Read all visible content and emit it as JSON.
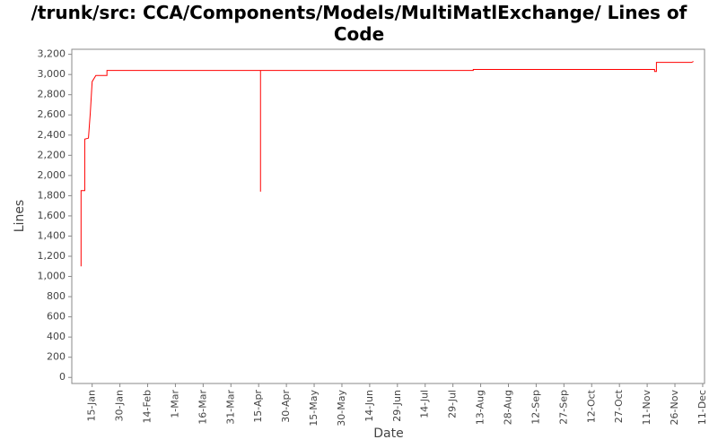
{
  "chart_data": {
    "type": "line",
    "title": "/trunk/src: CCA/Components/Models/MultiMatlExchange/ Lines of Code",
    "x_label": "Date",
    "y_label": "Lines",
    "x": [
      "9-Jan",
      "9-Jan",
      "11-Jan",
      "11-Jan",
      "13-Jan",
      "14-Jan",
      "15-Jan",
      "16-Jan",
      "17-Jan",
      "23-Jan",
      "23-Jan",
      "16-Apr",
      "16-Apr",
      "16-Apr",
      "9-Aug",
      "9-Aug",
      "15-Nov",
      "15-Nov",
      "16-Nov",
      "16-Nov",
      "5-Dec",
      "6-Dec"
    ],
    "series": [
      {
        "name": "Lines",
        "color": "#ff0000",
        "values": [
          1100,
          1850,
          1850,
          2360,
          2370,
          2620,
          2930,
          2960,
          2990,
          2990,
          3040,
          3040,
          1840,
          3040,
          3040,
          3050,
          3050,
          3030,
          3030,
          3120,
          3120,
          3130
        ]
      }
    ],
    "xlim": [
      "4-Jan",
      "12-Dec"
    ],
    "xticks": [
      "15-Jan",
      "30-Jan",
      "14-Feb",
      "1-Mar",
      "16-Mar",
      "31-Mar",
      "15-Apr",
      "30-Apr",
      "15-May",
      "30-May",
      "14-Jun",
      "29-Jun",
      "14-Jul",
      "29-Jul",
      "13-Aug",
      "28-Aug",
      "12-Sep",
      "27-Sep",
      "12-Oct",
      "27-Oct",
      "11-Nov",
      "26-Nov",
      "11-Dec"
    ],
    "ylim": [
      -60,
      3250
    ],
    "yticks": [
      0,
      200,
      400,
      600,
      800,
      {
        "value": 1000,
        "label": "1,000"
      },
      {
        "value": 1200,
        "label": "1,200"
      },
      {
        "value": 1400,
        "label": "1,400"
      },
      {
        "value": 1600,
        "label": "1,600"
      },
      {
        "value": 1800,
        "label": "1,800"
      },
      {
        "value": 2000,
        "label": "2,000"
      },
      {
        "value": 2200,
        "label": "2,200"
      },
      {
        "value": 2400,
        "label": "2,400"
      },
      {
        "value": 2600,
        "label": "2,600"
      },
      {
        "value": 2800,
        "label": "2,800"
      },
      {
        "value": 3000,
        "label": "3,000"
      },
      {
        "value": 3200,
        "label": "3,200"
      }
    ]
  }
}
